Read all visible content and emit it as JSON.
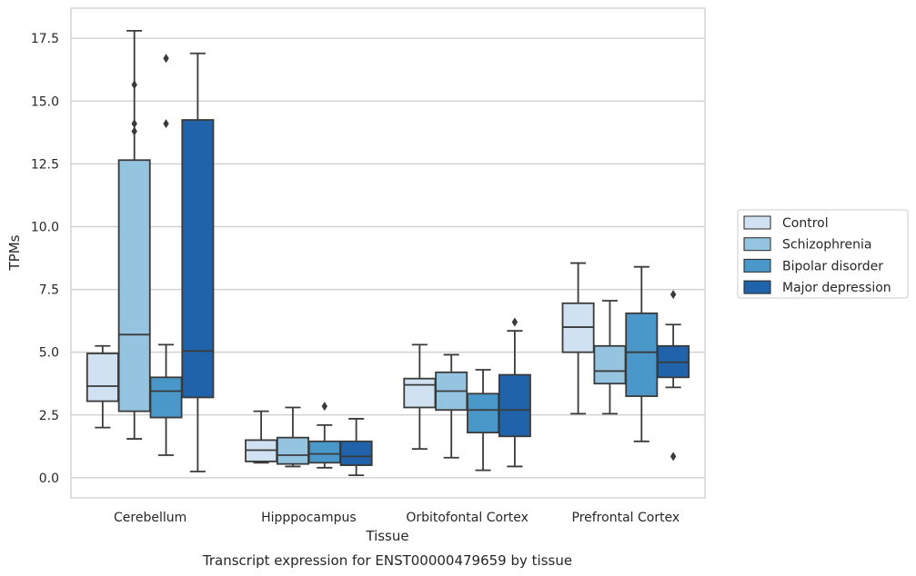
{
  "caption": "Transcript expression for ENST00000479659 by tissue",
  "chart_data": {
    "type": "box",
    "xlabel": "Tissue",
    "ylabel": "TPMs",
    "ylim": [
      -0.8,
      18.7
    ],
    "yticks": [
      0.0,
      2.5,
      5.0,
      7.5,
      10.0,
      12.5,
      15.0,
      17.5
    ],
    "ytick_labels": [
      "0.0",
      "2.5",
      "5.0",
      "7.5",
      "10.0",
      "12.5",
      "15.0",
      "17.5"
    ],
    "grid": "horizontal",
    "legend_position": "right",
    "categories": [
      "Cerebellum",
      "Hipppocampus",
      "Orbitofontal Cortex",
      "Prefrontal Cortex"
    ],
    "series": [
      {
        "name": "Control",
        "color": "#d0e1f2",
        "boxes": [
          {
            "whislo": 2.0,
            "q1": 3.05,
            "med": 3.65,
            "q3": 4.95,
            "whishi": 5.25,
            "fliers": []
          },
          {
            "whislo": 0.6,
            "q1": 0.65,
            "med": 1.1,
            "q3": 1.5,
            "whishi": 2.65,
            "fliers": []
          },
          {
            "whislo": 1.15,
            "q1": 2.8,
            "med": 3.7,
            "q3": 3.95,
            "whishi": 5.3,
            "fliers": []
          },
          {
            "whislo": 2.55,
            "q1": 5.0,
            "med": 6.0,
            "q3": 6.95,
            "whishi": 8.55,
            "fliers": []
          }
        ]
      },
      {
        "name": "Schizophrenia",
        "color": "#94c4df",
        "boxes": [
          {
            "whislo": 1.55,
            "q1": 2.65,
            "med": 5.7,
            "q3": 12.65,
            "whishi": 17.8,
            "fliers": [
              13.8,
              14.1,
              15.65
            ]
          },
          {
            "whislo": 0.45,
            "q1": 0.55,
            "med": 0.9,
            "q3": 1.6,
            "whishi": 2.8,
            "fliers": []
          },
          {
            "whislo": 0.8,
            "q1": 2.7,
            "med": 3.45,
            "q3": 4.2,
            "whishi": 4.9,
            "fliers": []
          },
          {
            "whislo": 2.55,
            "q1": 3.75,
            "med": 4.25,
            "q3": 5.25,
            "whishi": 7.05,
            "fliers": []
          }
        ]
      },
      {
        "name": "Bipolar disorder",
        "color": "#4a98c9",
        "boxes": [
          {
            "whislo": 0.9,
            "q1": 2.4,
            "med": 3.45,
            "q3": 4.0,
            "whishi": 5.3,
            "fliers": [
              14.1,
              16.7
            ]
          },
          {
            "whislo": 0.4,
            "q1": 0.6,
            "med": 0.95,
            "q3": 1.45,
            "whishi": 2.1,
            "fliers": [
              2.85
            ]
          },
          {
            "whislo": 0.3,
            "q1": 1.8,
            "med": 2.7,
            "q3": 3.35,
            "whishi": 4.3,
            "fliers": []
          },
          {
            "whislo": 1.45,
            "q1": 3.25,
            "med": 5.0,
            "q3": 6.55,
            "whishi": 8.4,
            "fliers": []
          }
        ]
      },
      {
        "name": "Major depression",
        "color": "#2163aa",
        "boxes": [
          {
            "whislo": 0.25,
            "q1": 3.2,
            "med": 5.05,
            "q3": 14.25,
            "whishi": 16.9,
            "fliers": []
          },
          {
            "whislo": 0.1,
            "q1": 0.5,
            "med": 0.85,
            "q3": 1.45,
            "whishi": 2.35,
            "fliers": []
          },
          {
            "whislo": 0.45,
            "q1": 1.65,
            "med": 2.7,
            "q3": 4.1,
            "whishi": 5.85,
            "fliers": [
              6.2
            ]
          },
          {
            "whislo": 3.6,
            "q1": 4.0,
            "med": 4.6,
            "q3": 5.25,
            "whishi": 6.1,
            "fliers": [
              0.85,
              7.3
            ]
          }
        ]
      }
    ]
  }
}
